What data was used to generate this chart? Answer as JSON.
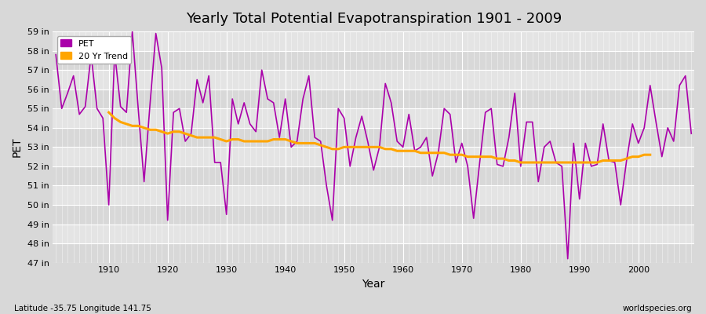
{
  "title": "Yearly Total Potential Evapotranspiration 1901 - 2009",
  "xlabel": "Year",
  "ylabel": "PET",
  "bottom_left": "Latitude -35.75 Longitude 141.75",
  "bottom_right": "worldspecies.org",
  "bg_color": "#d8d8d8",
  "plot_bg_color": "#e0e0e0",
  "pet_color": "#aa00aa",
  "trend_color": "#FFA500",
  "ylim_min": 47,
  "ylim_max": 59,
  "years": [
    1901,
    1902,
    1903,
    1904,
    1905,
    1906,
    1907,
    1908,
    1909,
    1910,
    1911,
    1912,
    1913,
    1914,
    1915,
    1916,
    1917,
    1918,
    1919,
    1920,
    1921,
    1922,
    1923,
    1924,
    1925,
    1926,
    1927,
    1928,
    1929,
    1930,
    1931,
    1932,
    1933,
    1934,
    1935,
    1936,
    1937,
    1938,
    1939,
    1940,
    1941,
    1942,
    1943,
    1944,
    1945,
    1946,
    1947,
    1948,
    1949,
    1950,
    1951,
    1952,
    1953,
    1954,
    1955,
    1956,
    1957,
    1958,
    1959,
    1960,
    1961,
    1962,
    1963,
    1964,
    1965,
    1966,
    1967,
    1968,
    1969,
    1970,
    1971,
    1972,
    1973,
    1974,
    1975,
    1976,
    1977,
    1978,
    1979,
    1980,
    1981,
    1982,
    1983,
    1984,
    1985,
    1986,
    1987,
    1988,
    1989,
    1990,
    1991,
    1992,
    1993,
    1994,
    1995,
    1996,
    1997,
    1998,
    1999,
    2000,
    2001,
    2002,
    2003,
    2004,
    2005,
    2006,
    2007,
    2008,
    2009
  ],
  "pet_values": [
    57.8,
    55.0,
    55.8,
    56.7,
    54.7,
    55.1,
    57.8,
    55.0,
    54.5,
    50.0,
    57.9,
    55.1,
    54.8,
    59.0,
    55.0,
    51.2,
    55.2,
    58.9,
    57.1,
    49.2,
    54.8,
    55.0,
    53.3,
    53.7,
    56.5,
    55.3,
    56.7,
    52.2,
    52.2,
    49.5,
    55.5,
    54.2,
    55.3,
    54.2,
    53.8,
    57.0,
    55.5,
    55.3,
    53.5,
    55.5,
    53.0,
    53.3,
    55.5,
    56.7,
    53.5,
    53.3,
    51.0,
    49.2,
    55.0,
    54.5,
    52.0,
    53.5,
    54.6,
    53.3,
    51.8,
    53.0,
    56.3,
    55.3,
    53.3,
    53.0,
    54.7,
    52.8,
    53.0,
    53.5,
    51.5,
    52.7,
    55.0,
    54.7,
    52.2,
    53.2,
    52.0,
    49.3,
    52.1,
    54.8,
    55.0,
    52.1,
    52.0,
    53.5,
    55.8,
    52.0,
    54.3,
    54.3,
    51.2,
    53.0,
    53.3,
    52.2,
    52.0,
    47.2,
    53.2,
    50.3,
    53.2,
    52.0,
    52.1,
    54.2,
    52.3,
    52.2,
    50.0,
    52.3,
    54.2,
    53.2,
    54.0,
    56.2,
    54.3,
    52.5,
    54.0,
    53.3,
    56.2,
    56.7,
    53.7
  ],
  "trend_values": [
    null,
    null,
    null,
    null,
    null,
    null,
    null,
    null,
    null,
    54.8,
    54.5,
    54.3,
    54.2,
    54.1,
    54.1,
    54.0,
    53.9,
    53.9,
    53.8,
    53.7,
    53.8,
    53.8,
    53.7,
    53.6,
    53.5,
    53.5,
    53.5,
    53.5,
    53.4,
    53.3,
    53.4,
    53.4,
    53.3,
    53.3,
    53.3,
    53.3,
    53.3,
    53.4,
    53.4,
    53.4,
    53.3,
    53.2,
    53.2,
    53.2,
    53.2,
    53.1,
    53.0,
    52.9,
    52.9,
    53.0,
    53.0,
    53.0,
    53.0,
    53.0,
    53.0,
    53.0,
    52.9,
    52.9,
    52.8,
    52.8,
    52.8,
    52.8,
    52.7,
    52.7,
    52.7,
    52.7,
    52.7,
    52.6,
    52.6,
    52.6,
    52.5,
    52.5,
    52.5,
    52.5,
    52.5,
    52.4,
    52.4,
    52.3,
    52.3,
    52.2,
    52.2,
    52.2,
    52.2,
    52.2,
    52.2,
    52.2,
    52.2,
    52.2,
    52.2,
    52.2,
    52.2,
    52.2,
    52.2,
    52.3,
    52.3,
    52.3,
    52.3,
    52.4,
    52.5,
    52.5,
    52.6,
    52.6,
    null,
    null,
    null,
    null,
    null,
    null,
    null
  ],
  "band_colors": [
    "#d8d8d8",
    "#e4e4e4"
  ]
}
